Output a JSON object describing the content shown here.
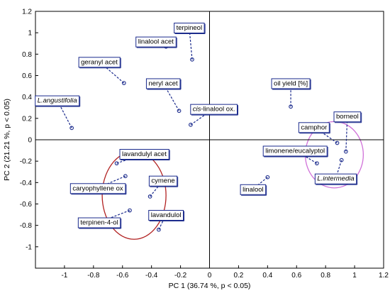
{
  "chart_data": {
    "type": "scatter",
    "title": "",
    "xlabel": "PC 1 (36.74 %,  p < 0.05)",
    "ylabel": "PC 2 (21.21 %,  p < 0.05)",
    "xlim": [
      -1.2,
      1.2
    ],
    "ylim": [
      -1.2,
      1.2
    ],
    "x_ticks": [
      -1.2,
      -1.0,
      -0.8,
      -0.6,
      -0.4,
      -0.2,
      0.0,
      0.2,
      0.4,
      0.6,
      0.8,
      1.0,
      1.2
    ],
    "y_ticks": [
      -1.2,
      -1.0,
      -0.8,
      -0.6,
      -0.4,
      -0.2,
      0.0,
      0.2,
      0.4,
      0.6,
      0.8,
      1.0,
      1.2
    ],
    "x_tick_labels": [
      "",
      "-1",
      "-0.8",
      "-0.6",
      "-0.4",
      "-0.2",
      "0",
      "0.2",
      "0.4",
      "0.6",
      "0.8",
      "1",
      "1.2"
    ],
    "y_tick_labels": [
      "",
      "-1",
      "-0.8",
      "-0.6",
      "-0.4",
      "-0.2",
      "0",
      "0.2",
      "0.4",
      "0.6",
      "0.8",
      "1",
      "1.2"
    ],
    "grid": false,
    "reference_lines": {
      "x": 0,
      "y": 0
    },
    "points": [
      {
        "label": "terpineol",
        "x": -0.12,
        "y": 0.75,
        "label_anchor": [
          -0.14,
          1.05
        ]
      },
      {
        "label": "linalool acet",
        "x": -0.3,
        "y": 0.87,
        "label_anchor": [
          -0.37,
          0.92
        ]
      },
      {
        "label": "geranyl acet",
        "x": -0.59,
        "y": 0.53,
        "label_anchor": [
          -0.76,
          0.73
        ]
      },
      {
        "label": "neryl acet",
        "x": -0.21,
        "y": 0.27,
        "label_anchor": [
          -0.32,
          0.53
        ]
      },
      {
        "label": "L.angustifolia",
        "x": -0.95,
        "y": 0.11,
        "label_anchor": [
          -1.05,
          0.37
        ],
        "italic": true
      },
      {
        "label": "cis-linalool ox.",
        "x": -0.13,
        "y": 0.14,
        "label_anchor": [
          0.03,
          0.29
        ],
        "italic_prefix": "cis"
      },
      {
        "label": "oil yield [%]",
        "x": 0.56,
        "y": 0.31,
        "label_anchor": [
          0.56,
          0.53
        ]
      },
      {
        "label": "borneol",
        "x": 0.94,
        "y": -0.11,
        "label_anchor": [
          0.95,
          0.22
        ]
      },
      {
        "label": "camphor",
        "x": 0.88,
        "y": -0.03,
        "label_anchor": [
          0.72,
          0.12
        ]
      },
      {
        "label": "limonene/eucalyptol",
        "x": 0.74,
        "y": -0.22,
        "label_anchor": [
          0.59,
          -0.1
        ]
      },
      {
        "label": "L.intermedia",
        "x": 0.91,
        "y": -0.19,
        "label_anchor": [
          0.87,
          -0.36
        ],
        "italic": true
      },
      {
        "label": "linalool",
        "x": 0.4,
        "y": -0.35,
        "label_anchor": [
          0.3,
          -0.46
        ]
      },
      {
        "label": "lavandulyl acet",
        "x": -0.64,
        "y": -0.22,
        "label_anchor": [
          -0.45,
          -0.13
        ]
      },
      {
        "label": "caryophyllene ox",
        "x": -0.58,
        "y": -0.34,
        "label_anchor": [
          -0.77,
          -0.45
        ]
      },
      {
        "label": "cymene",
        "x": -0.41,
        "y": -0.53,
        "label_anchor": [
          -0.32,
          -0.38
        ]
      },
      {
        "label": "terpinen-4-ol",
        "x": -0.55,
        "y": -0.66,
        "label_anchor": [
          -0.76,
          -0.77
        ]
      },
      {
        "label": "lavandulol",
        "x": -0.35,
        "y": -0.84,
        "label_anchor": [
          -0.3,
          -0.7
        ]
      }
    ],
    "ellipses": [
      {
        "cx": -0.52,
        "cy": -0.52,
        "rx": 0.22,
        "ry": 0.41,
        "color": "#b22222"
      },
      {
        "cx": 0.86,
        "cy": -0.14,
        "rx": 0.2,
        "ry": 0.31,
        "color": "#d070d8"
      }
    ],
    "colors": {
      "connector": "#1a2a8c",
      "marker": "#1a2a8c",
      "box_border": "#1a2a8c",
      "axis": "#000000"
    }
  }
}
